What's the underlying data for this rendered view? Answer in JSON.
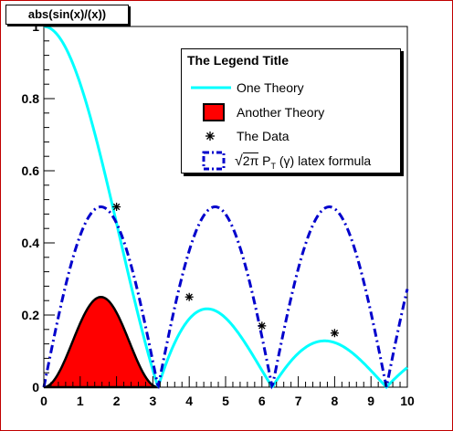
{
  "title": "abs(sin(x)/(x))",
  "colors": {
    "one_theory": "#00ffff",
    "another_theory_fill": "#ff0000",
    "latex_formula": "#0000cc",
    "frame": "#c00000"
  },
  "legend": {
    "title": "The Legend Title",
    "placement": "top-right",
    "entries": [
      {
        "label": "One Theory",
        "symbol": "line"
      },
      {
        "label": "Another Theory",
        "symbol": "filled-box"
      },
      {
        "label": "The Data",
        "symbol": "star-marker"
      },
      {
        "label_sqrt": "2π",
        "label_p": "P",
        "label_sub": "T",
        "label_rest": " (γ)  latex formula",
        "symbol": "dash-dot-box"
      }
    ]
  },
  "chart_data": {
    "type": "line",
    "xlim": [
      0,
      10
    ],
    "ylim": [
      0,
      1
    ],
    "x_ticks": [
      "0",
      "1",
      "2",
      "3",
      "4",
      "5",
      "6",
      "7",
      "8",
      "9",
      "10"
    ],
    "y_ticks": [
      "0",
      "0.2",
      "0.4",
      "0.6",
      "0.8",
      "1"
    ],
    "grid": false,
    "series": [
      {
        "name": "One Theory",
        "kind": "curve",
        "function": "abs(sin(x)/x)",
        "x": [
          0,
          0.5,
          1,
          1.5,
          2,
          2.5,
          3,
          3.14,
          3.5,
          4,
          4.5,
          5,
          5.5,
          6,
          6.28,
          6.5,
          7,
          7.5,
          8,
          8.5,
          9,
          9.42,
          9.5,
          10
        ],
        "y": [
          1,
          0.959,
          0.841,
          0.665,
          0.455,
          0.239,
          0.047,
          0,
          0.1,
          0.189,
          0.217,
          0.192,
          0.128,
          0.047,
          0,
          0.033,
          0.094,
          0.125,
          0.124,
          0.094,
          0.046,
          0,
          0.008,
          0.054
        ]
      },
      {
        "name": "Another Theory",
        "kind": "filled-area",
        "function": "sin(x)^2/4",
        "x": [
          0,
          0.5,
          1,
          1.57,
          2,
          2.5,
          3,
          3.14
        ],
        "y": [
          0,
          0.057,
          0.177,
          0.25,
          0.207,
          0.09,
          0.005,
          0
        ]
      },
      {
        "name": "The Data",
        "kind": "markers",
        "x": [
          2,
          4,
          6,
          8
        ],
        "y": [
          0.5,
          0.25,
          0.17,
          0.15
        ]
      },
      {
        "name": "√2π P_T (γ) latex formula",
        "kind": "dash-dot-curve",
        "function": "abs(sin(x))/2",
        "x": [
          0,
          0.5,
          1,
          1.57,
          2,
          2.5,
          3,
          3.14,
          3.5,
          4,
          4.71,
          5,
          5.5,
          6,
          6.28,
          6.5,
          7,
          7.85,
          8.5,
          9,
          9.42,
          9.5,
          10
        ],
        "y": [
          0,
          0.24,
          0.421,
          0.5,
          0.455,
          0.299,
          0.071,
          0,
          0.175,
          0.378,
          0.5,
          0.479,
          0.353,
          0.14,
          0,
          0.108,
          0.328,
          0.5,
          0.399,
          0.206,
          0,
          0.038,
          0.272
        ]
      }
    ]
  }
}
